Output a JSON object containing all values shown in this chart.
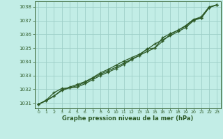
{
  "title": "Graphe pression niveau de la mer (hPa)",
  "background_color": "#c2ede6",
  "grid_color": "#9ecfc7",
  "line_color": "#2d5a27",
  "xlim": [
    -0.5,
    23.5
  ],
  "ylim": [
    1030.6,
    1038.4
  ],
  "yticks": [
    1031,
    1032,
    1033,
    1034,
    1035,
    1036,
    1037,
    1038
  ],
  "xticks": [
    0,
    1,
    2,
    3,
    4,
    5,
    6,
    7,
    8,
    9,
    10,
    11,
    12,
    13,
    14,
    15,
    16,
    17,
    18,
    19,
    20,
    21,
    22,
    23
  ],
  "series": [
    [
      1030.9,
      1031.2,
      1031.5,
      1031.9,
      1032.1,
      1032.25,
      1032.5,
      1032.8,
      1033.1,
      1033.35,
      1033.6,
      1033.9,
      1034.2,
      1034.45,
      1034.75,
      1035.0,
      1035.5,
      1036.0,
      1036.3,
      1036.6,
      1037.05,
      1037.3,
      1038.0,
      1038.15
    ],
    [
      1030.9,
      1031.15,
      1031.5,
      1031.95,
      1032.15,
      1032.35,
      1032.55,
      1032.85,
      1033.2,
      1033.45,
      1033.75,
      1034.05,
      1034.3,
      1034.55,
      1034.9,
      1035.3,
      1035.6,
      1035.9,
      1036.2,
      1036.5,
      1037.0,
      1037.2,
      1037.95,
      1038.15
    ],
    [
      1030.9,
      1031.2,
      1031.75,
      1032.05,
      1032.1,
      1032.15,
      1032.4,
      1032.7,
      1033.0,
      1033.25,
      1033.5,
      1033.8,
      1034.15,
      1034.45,
      1034.95,
      1035.0,
      1035.75,
      1036.05,
      1036.3,
      1036.65,
      1037.1,
      1037.2,
      1037.95,
      1038.15
    ]
  ]
}
